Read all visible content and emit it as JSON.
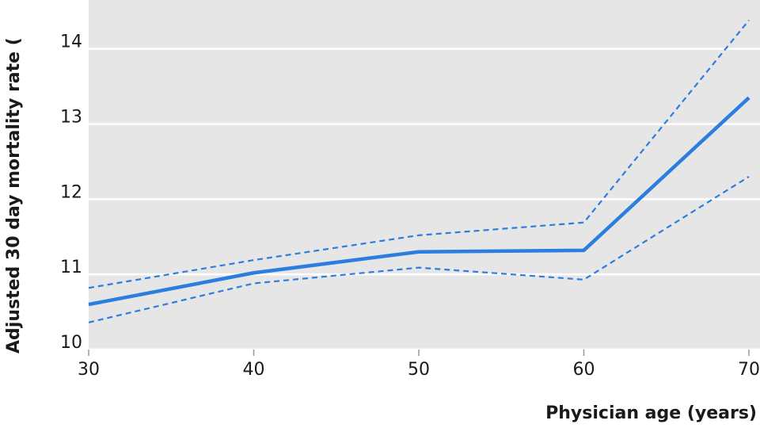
{
  "chart_data": {
    "type": "line",
    "y_label": "Adjusted 30 day mortality rate (",
    "x_label": "Physician age (years)",
    "x": [
      30,
      40,
      50,
      60,
      70
    ],
    "series": [
      {
        "color": "#2b7de0",
        "linestyle": "dashed",
        "values": [
          10.82,
          11.19,
          11.52,
          11.69,
          14.38
        ]
      },
      {
        "color": "#2b7de0",
        "linestyle": "solid",
        "values": [
          10.6,
          11.02,
          11.3,
          11.32,
          13.35
        ]
      },
      {
        "color": "#2b7de0",
        "linestyle": "dashed",
        "values": [
          10.36,
          10.88,
          11.09,
          10.93,
          12.3
        ]
      }
    ],
    "xlim": [
      30,
      70
    ],
    "xticks": [
      30,
      40,
      50,
      60,
      70
    ],
    "ylim": [
      10,
      14.65
    ],
    "yticks": [
      10,
      11,
      12,
      13,
      14
    ],
    "grid": true,
    "background": "#e6e6e6"
  }
}
